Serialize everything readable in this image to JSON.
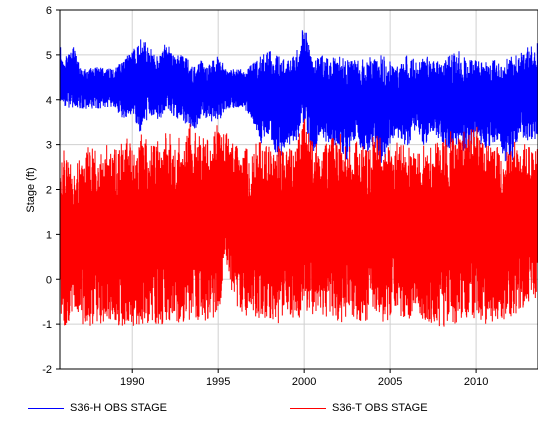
{
  "chart_data": {
    "type": "line",
    "title": "",
    "xlabel": "",
    "ylabel": "Stage (ft)",
    "xlim": [
      1985.8,
      2013.6
    ],
    "ylim": [
      -2,
      6
    ],
    "x_ticks": [
      1990,
      1995,
      2000,
      2005,
      2010
    ],
    "y_ticks": [
      -2,
      -1,
      0,
      1,
      2,
      3,
      4,
      5,
      6
    ],
    "x_tick_labels": [
      "1990",
      "1995",
      "2000",
      "2005",
      "2010"
    ],
    "y_tick_labels": [
      "-2",
      "-1",
      "0",
      "1",
      "2",
      "3",
      "4",
      "5",
      "6"
    ],
    "grid": true,
    "legend_position": "bottom",
    "series": [
      {
        "name": "S36-H OBS STAGE",
        "color": "#0000ff",
        "x": [
          1985.8,
          1986.0,
          1986.5,
          1987.0,
          1987.5,
          1988.0,
          1988.5,
          1989.0,
          1989.5,
          1990.0,
          1990.5,
          1991.0,
          1991.5,
          1992.0,
          1992.5,
          1993.0,
          1993.5,
          1994.0,
          1994.5,
          1995.0,
          1995.5,
          1996.0,
          1996.5,
          1997.0,
          1997.5,
          1998.0,
          1998.5,
          1999.0,
          1999.5,
          2000.0,
          2000.5,
          2001.0,
          2001.5,
          2002.0,
          2002.5,
          2003.0,
          2003.5,
          2004.0,
          2004.5,
          2005.0,
          2005.5,
          2006.0,
          2006.5,
          2007.0,
          2007.5,
          2008.0,
          2008.5,
          2009.0,
          2009.5,
          2010.0,
          2010.5,
          2011.0,
          2011.5,
          2012.0,
          2012.5,
          2013.0,
          2013.6
        ],
        "low": [
          3.8,
          3.8,
          3.8,
          3.8,
          3.8,
          3.8,
          3.8,
          3.8,
          3.5,
          3.7,
          3.2,
          3.7,
          3.5,
          3.8,
          3.6,
          3.5,
          3.2,
          3.6,
          3.5,
          3.5,
          3.8,
          3.8,
          3.8,
          3.5,
          3.0,
          3.2,
          2.6,
          3.0,
          3.0,
          3.5,
          2.8,
          3.2,
          2.9,
          3.0,
          2.6,
          3.2,
          2.7,
          2.9,
          2.5,
          3.0,
          3.1,
          2.8,
          3.4,
          2.9,
          3.3,
          3.0,
          2.8,
          3.0,
          2.7,
          3.1,
          2.9,
          3.0,
          2.8,
          2.3,
          3.2,
          3.0,
          3.1
        ],
        "high": [
          5.3,
          4.8,
          5.3,
          4.7,
          4.7,
          4.8,
          4.7,
          4.7,
          4.9,
          5.1,
          5.4,
          5.2,
          5.0,
          5.3,
          5.0,
          5.0,
          4.8,
          4.9,
          4.8,
          5.0,
          4.7,
          4.7,
          4.7,
          4.8,
          5.0,
          5.1,
          5.0,
          4.9,
          5.0,
          5.7,
          4.9,
          5.0,
          4.9,
          5.0,
          4.9,
          4.9,
          4.9,
          5.0,
          5.0,
          4.9,
          4.8,
          5.0,
          4.9,
          5.0,
          4.9,
          4.9,
          5.0,
          5.1,
          4.9,
          4.9,
          4.9,
          4.9,
          4.8,
          5.0,
          5.0,
          5.2,
          5.3
        ]
      },
      {
        "name": "S36-T OBS STAGE",
        "color": "#ff0000",
        "x": [
          1985.8,
          1986.0,
          1986.5,
          1987.0,
          1987.5,
          1988.0,
          1988.5,
          1989.0,
          1989.5,
          1990.0,
          1990.5,
          1991.0,
          1991.5,
          1992.0,
          1992.5,
          1993.0,
          1993.5,
          1994.0,
          1994.5,
          1995.0,
          1995.5,
          1996.0,
          1996.5,
          1997.0,
          1997.5,
          1998.0,
          1998.5,
          1999.0,
          1999.5,
          2000.0,
          2000.5,
          2001.0,
          2001.5,
          2002.0,
          2002.5,
          2003.0,
          2003.5,
          2004.0,
          2004.5,
          2005.0,
          2005.5,
          2006.0,
          2006.5,
          2007.0,
          2007.5,
          2008.0,
          2008.5,
          2009.0,
          2009.5,
          2010.0,
          2010.5,
          2011.0,
          2011.5,
          2012.0,
          2012.5,
          2013.0,
          2013.6
        ],
        "low": [
          -0.8,
          -1.1,
          -0.9,
          -1.0,
          -1.1,
          -1.0,
          -1.0,
          -1.0,
          -1.1,
          -1.1,
          -1.0,
          -1.0,
          -1.1,
          -0.9,
          -1.0,
          -1.0,
          -0.9,
          -1.0,
          -0.9,
          -0.8,
          0.2,
          -0.6,
          -0.8,
          -0.9,
          -0.9,
          -0.9,
          -1.0,
          -0.8,
          -0.9,
          -0.9,
          -0.8,
          -0.9,
          -0.8,
          -1.0,
          -0.9,
          -1.0,
          -1.0,
          -0.9,
          -1.0,
          -0.9,
          -0.8,
          -0.9,
          -0.8,
          -0.9,
          -1.0,
          -1.1,
          -1.0,
          -1.0,
          -0.9,
          -0.9,
          -1.0,
          -1.0,
          -1.0,
          -0.9,
          -0.7,
          -0.6,
          -0.6
        ],
        "high": [
          2.7,
          2.9,
          2.6,
          2.7,
          3.0,
          2.8,
          3.0,
          2.9,
          3.1,
          3.2,
          3.3,
          3.0,
          3.1,
          3.3,
          3.2,
          3.1,
          3.6,
          3.2,
          3.1,
          3.5,
          3.4,
          3.0,
          2.9,
          3.0,
          3.2,
          3.1,
          3.0,
          3.0,
          3.0,
          3.7,
          3.1,
          3.0,
          3.1,
          3.3,
          3.0,
          3.1,
          3.0,
          3.2,
          3.2,
          3.0,
          3.1,
          3.0,
          2.8,
          3.0,
          3.0,
          3.1,
          3.3,
          3.2,
          3.4,
          3.5,
          3.0,
          3.0,
          2.9,
          3.0,
          3.2,
          3.0,
          2.9
        ]
      }
    ]
  }
}
